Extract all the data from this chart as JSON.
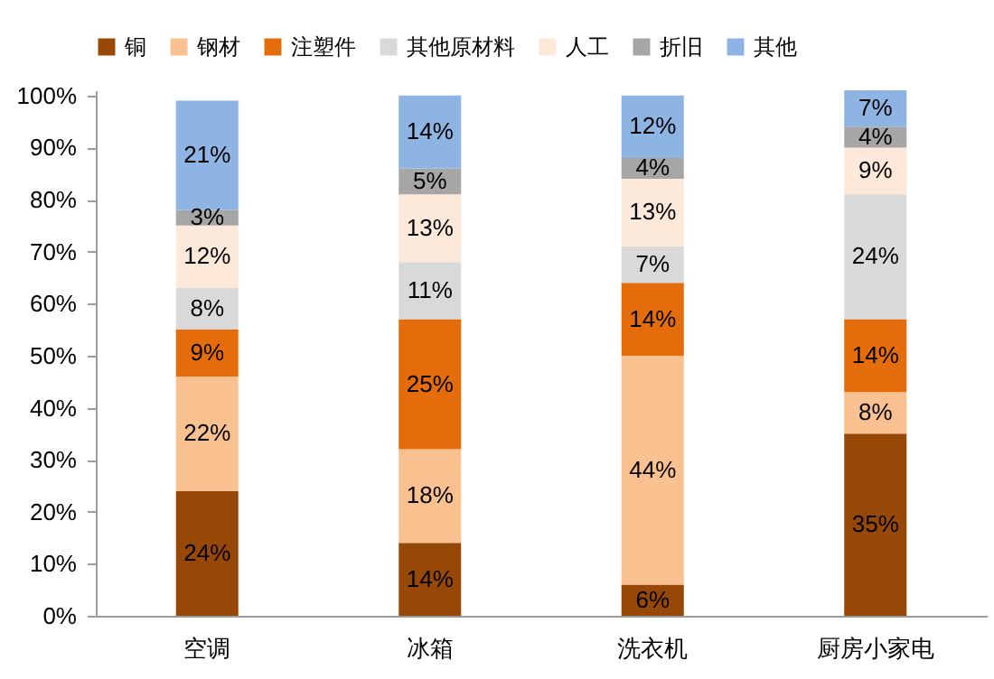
{
  "chart_data": {
    "type": "bar",
    "stacked": true,
    "categories": [
      "空调",
      "冰箱",
      "洗衣机",
      "厨房小家电"
    ],
    "series": [
      {
        "name": "铜",
        "color": "#974706",
        "values": [
          24,
          14,
          6,
          35
        ],
        "value_labels": [
          "24%",
          "14%",
          "6%",
          "35%"
        ]
      },
      {
        "name": "钢材",
        "color": "#f9c090",
        "values": [
          22,
          18,
          44,
          8
        ],
        "value_labels": [
          "22%",
          "18%",
          "44%",
          "8%"
        ]
      },
      {
        "name": "注塑件",
        "color": "#e46c0a",
        "values": [
          9,
          25,
          14,
          14
        ],
        "value_labels": [
          "9%",
          "25%",
          "14%",
          "14%"
        ]
      },
      {
        "name": "其他原材料",
        "color": "#d9d9d9",
        "values": [
          8,
          11,
          7,
          24
        ],
        "value_labels": [
          "8%",
          "11%",
          "7%",
          "24%"
        ]
      },
      {
        "name": "人工",
        "color": "#fde9d9",
        "values": [
          12,
          13,
          13,
          9
        ],
        "value_labels": [
          "12%",
          "13%",
          "13%",
          "9%"
        ]
      },
      {
        "name": "折旧",
        "color": "#a6a6a6",
        "values": [
          3,
          5,
          4,
          4
        ],
        "value_labels": [
          "3%",
          "5%",
          "4%",
          "4%"
        ]
      },
      {
        "name": "其他",
        "color": "#8db4e2",
        "values": [
          21,
          14,
          12,
          7
        ],
        "value_labels": [
          "21%",
          "14%",
          "12%",
          "7%"
        ]
      }
    ],
    "ylim": [
      0,
      101
    ],
    "yticks": [
      {
        "value": 0,
        "label": "0%"
      },
      {
        "value": 10,
        "label": "10%"
      },
      {
        "value": 20,
        "label": "20%"
      },
      {
        "value": 30,
        "label": "30%"
      },
      {
        "value": 40,
        "label": "40%"
      },
      {
        "value": 50,
        "label": "50%"
      },
      {
        "value": 60,
        "label": "60%"
      },
      {
        "value": 70,
        "label": "70%"
      },
      {
        "value": 80,
        "label": "80%"
      },
      {
        "value": 90,
        "label": "90%"
      },
      {
        "value": 100,
        "label": "100%"
      }
    ],
    "legend": "top",
    "grid": false
  }
}
